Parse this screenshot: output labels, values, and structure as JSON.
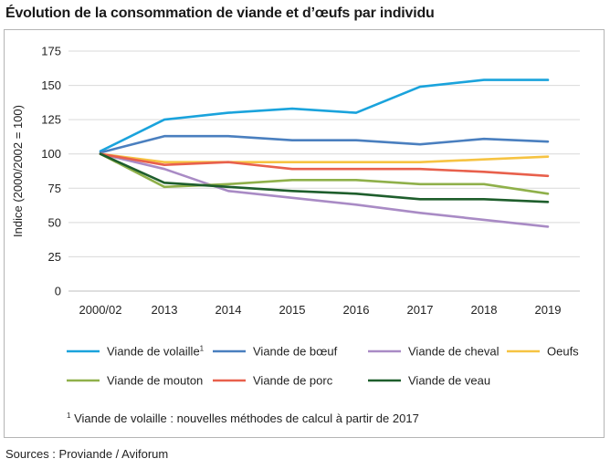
{
  "title": "Évolution de la consommation de viande et d’œufs par individu",
  "source": "Sources : Proviande / Aviforum",
  "footnote": {
    "marker": "1",
    "text": " Viande de volaille : nouvelles méthodes de calcul à partir de 2017"
  },
  "chart_data": {
    "type": "line",
    "ylabel": "Indice (2000/2002 = 100)",
    "xlabel": "",
    "categories": [
      "2000/02",
      "2013",
      "2014",
      "2015",
      "2016",
      "2017",
      "2018",
      "2019"
    ],
    "ylim": [
      0,
      175
    ],
    "yticks": [
      0,
      25,
      50,
      75,
      100,
      125,
      150,
      175
    ],
    "grid": "horizontal",
    "legend_position": "bottom",
    "series": [
      {
        "name": "Viande de volaille",
        "sup": "1",
        "color": "#1aa3dc",
        "values": [
          102,
          125,
          130,
          133,
          130,
          149,
          154,
          154
        ]
      },
      {
        "name": "Viande de bœuf",
        "sup": "",
        "color": "#4a7fbf",
        "values": [
          101,
          113,
          113,
          110,
          110,
          107,
          111,
          109
        ]
      },
      {
        "name": "Viande de cheval",
        "sup": "",
        "color": "#a98bc5",
        "values": [
          100,
          89,
          73,
          68,
          63,
          57,
          52,
          47
        ]
      },
      {
        "name": "Oeufs",
        "sup": "",
        "color": "#f6c342",
        "values": [
          100,
          94,
          94,
          94,
          94,
          94,
          96,
          98
        ]
      },
      {
        "name": "Viande de mouton",
        "sup": "",
        "color": "#8fb04a",
        "values": [
          100,
          76,
          78,
          81,
          81,
          78,
          78,
          71
        ]
      },
      {
        "name": "Viande de porc",
        "sup": "",
        "color": "#e8604c",
        "values": [
          100,
          92,
          94,
          89,
          89,
          89,
          87,
          84
        ]
      },
      {
        "name": "Viande de veau",
        "sup": "",
        "color": "#1e5e2c",
        "values": [
          100,
          79,
          76,
          73,
          71,
          67,
          67,
          65
        ]
      }
    ]
  }
}
